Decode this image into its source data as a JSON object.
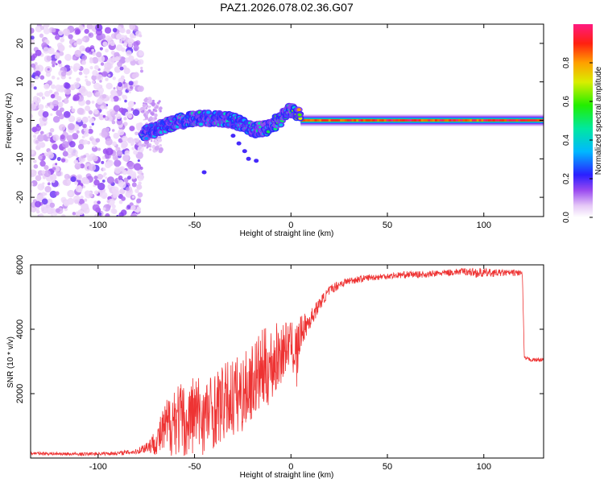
{
  "title": "PAZ1.2026.078.02.36.G07",
  "colors": {
    "snr_line": "#ee3333",
    "axis": "#000000",
    "background": "#ffffff"
  },
  "chart_data": [
    {
      "type": "heatmap",
      "name": "spectrogram",
      "xlabel": "Height of straight line (km)",
      "ylabel": "Frequency (Hz)",
      "xlim": [
        -135,
        131
      ],
      "ylim": [
        -25,
        25
      ],
      "xticks": [
        -100,
        -50,
        0,
        50,
        100
      ],
      "yticks": [
        -20,
        -10,
        0,
        10,
        20
      ],
      "noise_region": {
        "x_range": [
          -135,
          -77
        ],
        "description": "scattered low-amplitude speckle"
      },
      "ridge": [
        {
          "x": -76,
          "freq": -3.5,
          "amp": 0.45
        },
        {
          "x": -68,
          "freq": -2.0,
          "amp": 0.4
        },
        {
          "x": -60,
          "freq": -0.5,
          "amp": 0.45
        },
        {
          "x": -50,
          "freq": 0.5,
          "amp": 0.45
        },
        {
          "x": -40,
          "freq": 0.5,
          "amp": 0.45
        },
        {
          "x": -30,
          "freq": 0.0,
          "amp": 0.4
        },
        {
          "x": -20,
          "freq": -2.5,
          "amp": 0.4
        },
        {
          "x": -12,
          "freq": -2.0,
          "amp": 0.55
        },
        {
          "x": -5,
          "freq": 0.5,
          "amp": 0.5
        },
        {
          "x": -1,
          "freq": 3.0,
          "amp": 0.45
        },
        {
          "x": 5,
          "freq": 1.0,
          "amp": 0.85
        },
        {
          "x": 15,
          "freq": 0.3,
          "amp": 0.9
        },
        {
          "x": 30,
          "freq": 0.0,
          "amp": 1.0
        },
        {
          "x": 60,
          "freq": 0.0,
          "amp": 0.98
        },
        {
          "x": 90,
          "freq": 0.0,
          "amp": 1.0
        },
        {
          "x": 110,
          "freq": 0.0,
          "amp": 0.95
        },
        {
          "x": 131,
          "freq": 0.0,
          "amp": 1.0
        }
      ],
      "colorbar": {
        "label": "Normalized spectral amplitude",
        "range": [
          0,
          1
        ],
        "ticks": [
          "0.0",
          "0.2",
          "0.4",
          "0.6",
          "0.8"
        ],
        "tick_values": [
          0,
          0.2,
          0.4,
          0.6,
          0.8
        ]
      }
    },
    {
      "type": "line",
      "name": "snr",
      "xlabel": "Height of straight line (km)",
      "ylabel": "SNR (10 * v/v)",
      "xlim": [
        -135,
        131
      ],
      "ylim": [
        0,
        6000
      ],
      "xticks": [
        -100,
        -50,
        0,
        50,
        100
      ],
      "yticks": [
        2000,
        4000,
        6000
      ],
      "series": [
        {
          "name": "SNR",
          "x": [
            -135,
            -110,
            -90,
            -80,
            -75,
            -70,
            -65,
            -60,
            -55,
            -50,
            -45,
            -40,
            -35,
            -30,
            -25,
            -20,
            -15,
            -10,
            -5,
            0,
            3,
            5,
            10,
            15,
            20,
            25,
            30,
            40,
            50,
            60,
            70,
            80,
            90,
            97,
            100,
            110,
            119,
            120,
            121,
            125,
            131
          ],
          "y": [
            150,
            120,
            150,
            200,
            350,
            500,
            900,
            1300,
            1100,
            1400,
            1300,
            1500,
            1700,
            1900,
            2000,
            2400,
            2700,
            2900,
            3300,
            3600,
            3100,
            3900,
            4300,
            4800,
            5200,
            5400,
            5500,
            5600,
            5650,
            5700,
            5700,
            5750,
            5800,
            5750,
            5750,
            5750,
            5750,
            5700,
            3100,
            3050,
            3050
          ],
          "spread": [
            50,
            50,
            60,
            80,
            200,
            400,
            900,
            1200,
            1200,
            1300,
            1200,
            1200,
            1200,
            1300,
            1200,
            1200,
            1300,
            1200,
            1000,
            600,
            1200,
            500,
            300,
            200,
            150,
            150,
            120,
            100,
            100,
            100,
            100,
            100,
            110,
            160,
            140,
            100,
            100,
            100,
            60,
            60,
            60
          ]
        }
      ]
    }
  ]
}
